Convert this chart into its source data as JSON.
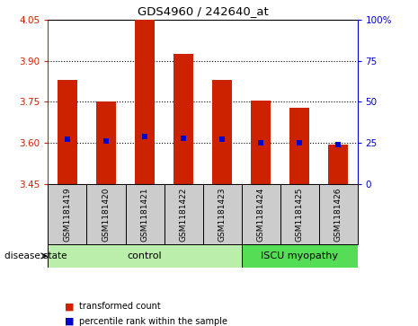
{
  "title": "GDS4960 / 242640_at",
  "samples": [
    "GSM1181419",
    "GSM1181420",
    "GSM1181421",
    "GSM1181422",
    "GSM1181423",
    "GSM1181424",
    "GSM1181425",
    "GSM1181426"
  ],
  "bar_values": [
    3.83,
    3.75,
    4.05,
    3.925,
    3.83,
    3.755,
    3.73,
    3.595
  ],
  "percentile_values": [
    3.615,
    3.608,
    3.625,
    3.618,
    3.614,
    3.602,
    3.602,
    3.595
  ],
  "bar_bottom": 3.45,
  "ylim_left": [
    3.45,
    4.05
  ],
  "ylim_right": [
    0,
    100
  ],
  "yticks_left": [
    3.45,
    3.6,
    3.75,
    3.9,
    4.05
  ],
  "yticks_right": [
    0,
    25,
    50,
    75,
    100
  ],
  "bar_color": "#cc2200",
  "percentile_color": "#0000cc",
  "n_control": 5,
  "n_disease": 3,
  "control_label": "control",
  "disease_label": "ISCU myopathy",
  "control_color": "#bbeeaa",
  "disease_color": "#55dd55",
  "sample_box_color": "#cccccc",
  "legend_bar_label": "transformed count",
  "legend_pct_label": "percentile rank within the sample",
  "disease_state_label": "disease state",
  "grid_yticks": [
    3.6,
    3.75,
    3.9
  ],
  "bar_width": 0.5
}
